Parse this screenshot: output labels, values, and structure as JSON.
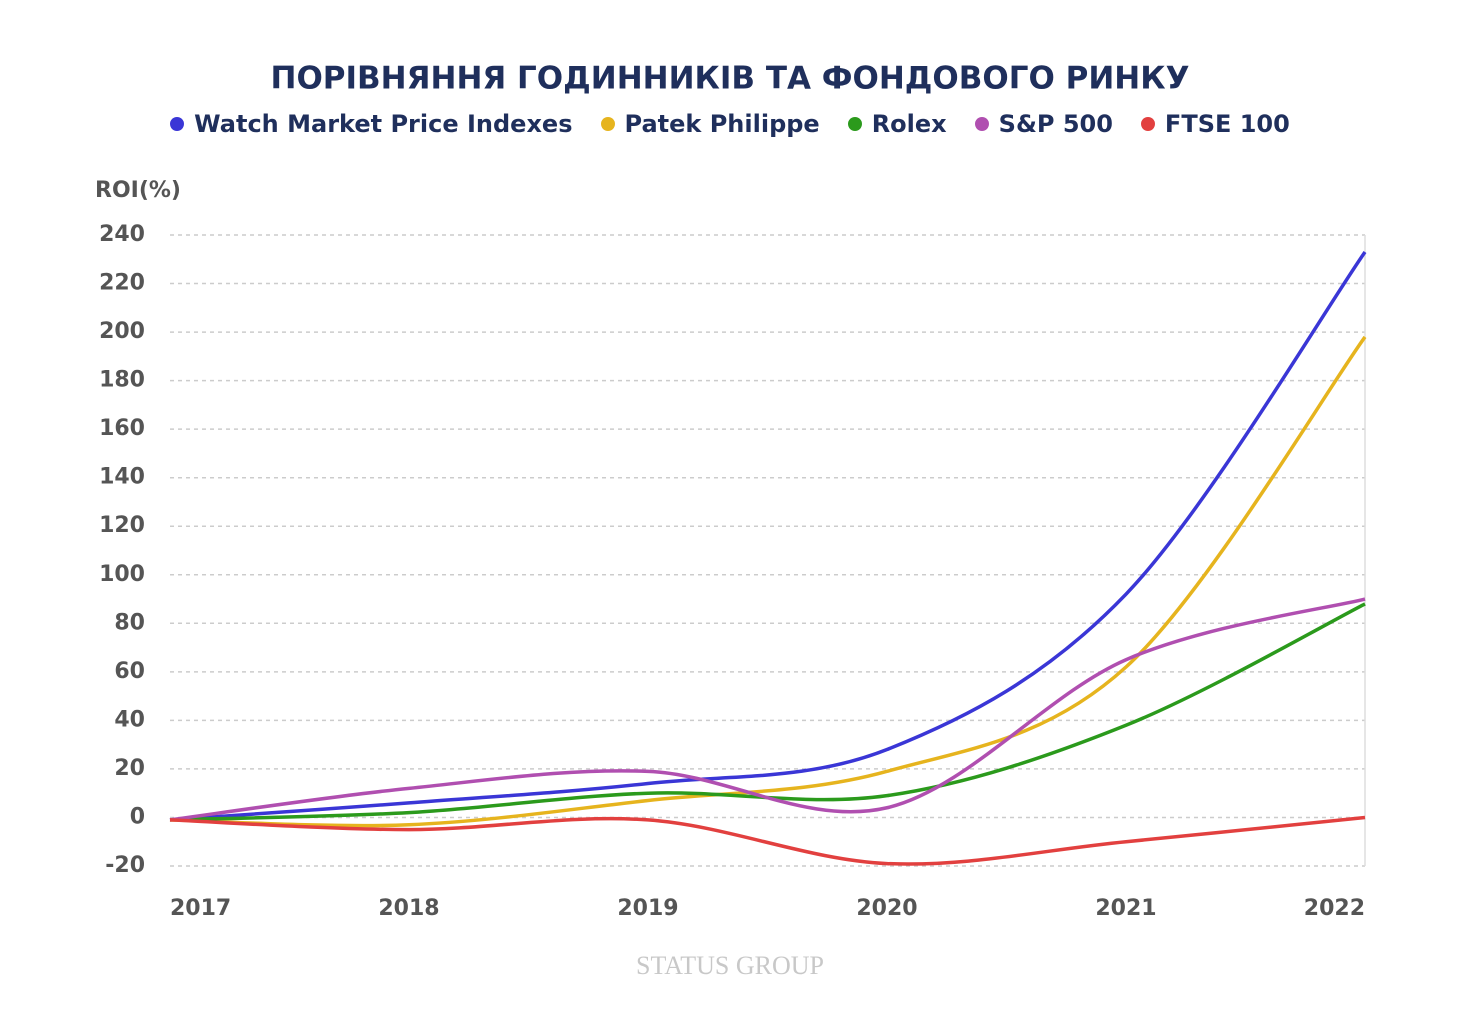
{
  "chart_data": {
    "type": "line",
    "title": "ПОРІВНЯННЯ ГОДИННИКІВ ТА ФОНДОВОГО РИНКУ",
    "y_label": "ROI(%)",
    "watermark": "STATUS GROUP",
    "x": [
      2017,
      2018,
      2019,
      2020,
      2021,
      2022
    ],
    "xlim": [
      2017,
      2022
    ],
    "xticks": [
      2017,
      2018,
      2019,
      2020,
      2021,
      2022
    ],
    "ylim": [
      -20,
      240
    ],
    "yticks": [
      -20,
      0,
      20,
      40,
      60,
      80,
      100,
      120,
      140,
      160,
      180,
      200,
      220,
      240
    ],
    "grid": true,
    "series": [
      {
        "name": "Watch Market Price Indexes",
        "color": "#3a36d6",
        "values": [
          -1,
          6,
          14,
          28,
          92,
          233
        ]
      },
      {
        "name": "Patek Philippe",
        "color": "#e6b41e",
        "values": [
          -1,
          -3,
          7,
          19,
          62,
          198
        ]
      },
      {
        "name": "Rolex",
        "color": "#2b9a1c",
        "values": [
          -1,
          2,
          10,
          9,
          38,
          88
        ]
      },
      {
        "name": "S&P 500",
        "color": "#b04fb0",
        "values": [
          -1,
          12,
          19,
          4,
          65,
          90
        ]
      },
      {
        "name": "FTSE 100",
        "color": "#e2403f",
        "values": [
          -1,
          -5,
          -1,
          -19,
          -10,
          0
        ]
      }
    ]
  }
}
